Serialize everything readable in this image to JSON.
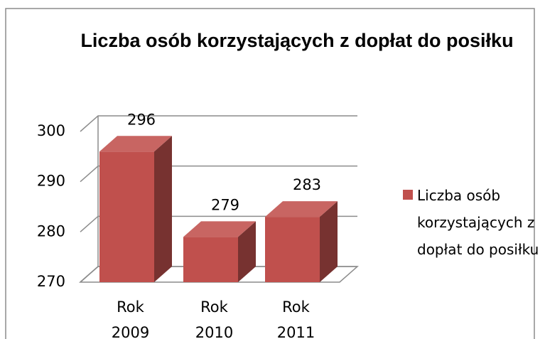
{
  "chart_data": {
    "type": "bar",
    "title": "Liczba osób korzystających z dopłat do posiłku",
    "categories": [
      "Rok 2009",
      "Rok 2010",
      "Rok 2011"
    ],
    "series": [
      {
        "name": "Liczba osób korzystających z dopłat do posiłku",
        "color": "#c0504d",
        "values": [
          296,
          279,
          283
        ]
      }
    ],
    "ylim": [
      270,
      300
    ],
    "yticks": [
      270,
      280,
      290,
      300
    ],
    "grid": true,
    "legend": "right"
  }
}
